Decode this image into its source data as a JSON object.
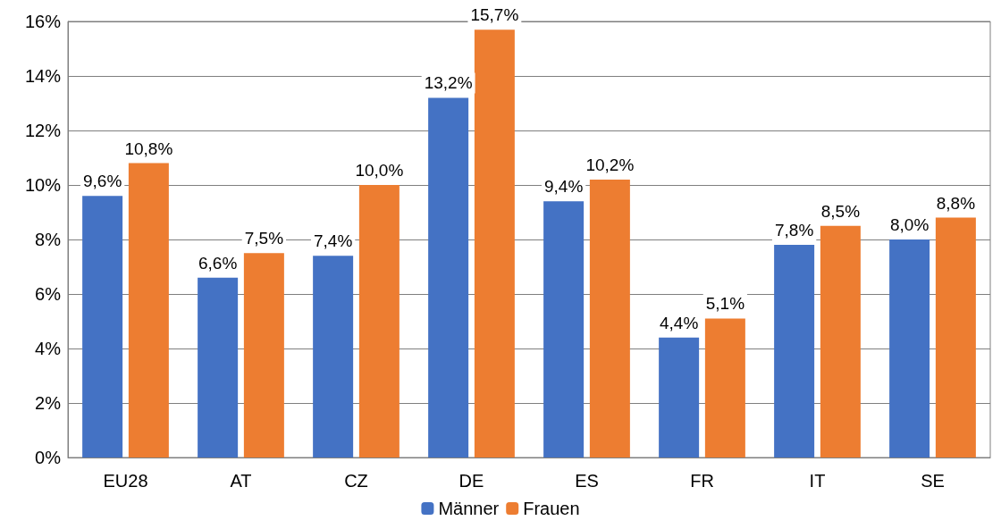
{
  "chart_data": {
    "type": "bar",
    "categories": [
      "EU28",
      "AT",
      "CZ",
      "DE",
      "ES",
      "FR",
      "IT",
      "SE"
    ],
    "series": [
      {
        "name": "Männer",
        "color": "#4472c4",
        "values": [
          9.6,
          6.6,
          7.4,
          13.2,
          9.4,
          4.4,
          7.8,
          8.0
        ],
        "value_labels": [
          "9,6%",
          "6,6%",
          "7,4%",
          "13,2%",
          "9,4%",
          "4,4%",
          "7,8%",
          "8,0%"
        ]
      },
      {
        "name": "Frauen",
        "color": "#ed7d31",
        "values": [
          10.8,
          7.5,
          10.0,
          15.7,
          10.2,
          5.1,
          8.5,
          8.8
        ],
        "value_labels": [
          "10,8%",
          "7,5%",
          "10,0%",
          "15,7%",
          "10,2%",
          "5,1%",
          "8,5%",
          "8,8%"
        ]
      }
    ],
    "ylim": [
      0,
      16
    ],
    "yticks": [
      {
        "value": 0,
        "label": "0%"
      },
      {
        "value": 2,
        "label": "2%"
      },
      {
        "value": 4,
        "label": "4%"
      },
      {
        "value": 6,
        "label": "6%"
      },
      {
        "value": 8,
        "label": "8%"
      },
      {
        "value": 10,
        "label": "10%"
      },
      {
        "value": 12,
        "label": "12%"
      },
      {
        "value": 14,
        "label": "14%"
      },
      {
        "value": 16,
        "label": "16%"
      }
    ],
    "grid": "y",
    "legend": "bottom"
  }
}
